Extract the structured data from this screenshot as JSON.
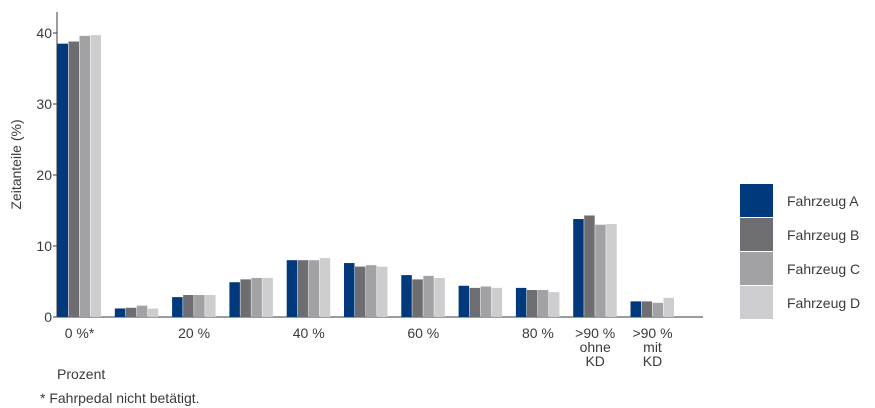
{
  "chart_data": {
    "type": "bar",
    "title": "",
    "xlabel": "Prozent",
    "ylabel": "Zeitanteile (%)",
    "ylim": [
      0,
      40
    ],
    "yticks": [
      0,
      10,
      20,
      30,
      40
    ],
    "grid": false,
    "legend_position": "right",
    "categories": [
      [
        "0 %*"
      ],
      [
        ""
      ],
      [
        "20 %"
      ],
      [
        ""
      ],
      [
        "40 %"
      ],
      [
        ""
      ],
      [
        "60 %"
      ],
      [
        ""
      ],
      [
        "80 %"
      ],
      [
        ">90 %",
        "ohne",
        "KD"
      ],
      [
        ">90 %",
        "mit",
        "KD"
      ]
    ],
    "series": [
      {
        "name": "Fahrzeug A",
        "color": "#003a7d",
        "values": [
          38.5,
          1.2,
          2.8,
          4.9,
          8.0,
          7.6,
          5.9,
          4.4,
          4.1,
          13.8,
          2.2
        ]
      },
      {
        "name": "Fahrzeug B",
        "color": "#6e6e72",
        "values": [
          38.8,
          1.3,
          3.1,
          5.3,
          8.0,
          7.1,
          5.3,
          4.1,
          3.8,
          14.3,
          2.2
        ]
      },
      {
        "name": "Fahrzeug C",
        "color": "#a2a2a4",
        "values": [
          39.6,
          1.6,
          3.1,
          5.5,
          8.0,
          7.3,
          5.8,
          4.3,
          3.8,
          13.0,
          2.0
        ]
      },
      {
        "name": "Fahrzeug D",
        "color": "#cdcdcf",
        "values": [
          39.7,
          1.2,
          3.1,
          5.5,
          8.3,
          7.1,
          5.5,
          4.1,
          3.5,
          13.1,
          2.7
        ]
      }
    ]
  },
  "footnote": "* Fahrpedal nicht betätigt."
}
